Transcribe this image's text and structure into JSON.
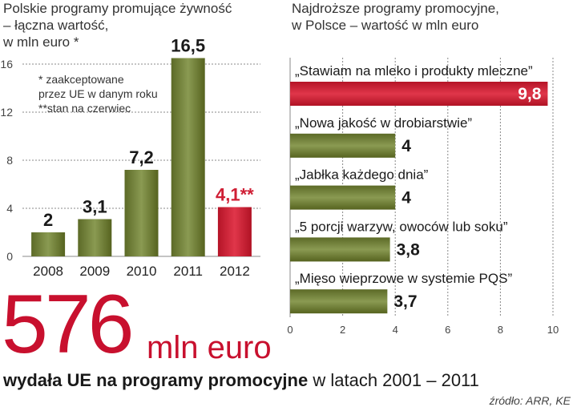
{
  "left_title": [
    "Polskie programy promujące żywność",
    "– łączna wartość,",
    "w mln euro *"
  ],
  "left_note": [
    "* zaakceptowane",
    "przez UE w danym roku",
    "**stan na czerwiec"
  ],
  "right_title": [
    "Najdroższe programy promocyjne,",
    "w Polsce – wartość w mln euro"
  ],
  "colors": {
    "olive": "#6e7a37",
    "red": "#cf1f35",
    "grid": "#888888"
  },
  "chart_data": [
    {
      "type": "bar",
      "categories": [
        "2008",
        "2009",
        "2010",
        "2011",
        "2012"
      ],
      "values": [
        2,
        3.1,
        7.2,
        16.5,
        4.1
      ],
      "value_labels": [
        "2",
        "3,1",
        "7,2",
        "16,5",
        "4,1**"
      ],
      "highlight_index": 4,
      "yticks": [
        "0",
        "4",
        "8",
        "12",
        "16"
      ],
      "ylim": [
        0,
        17
      ],
      "grid": true
    },
    {
      "type": "bar",
      "orientation": "horizontal",
      "categories": [
        "„Stawiam na mleko i produkty mleczne”",
        "„Nowa jakość w drobiarstwie”",
        "„Jabłka każdego dnia”",
        "„5 porcji warzyw, owoców lub soku”",
        "„Mięso wieprzowe w systemie PQS”"
      ],
      "values": [
        9.8,
        4,
        4,
        3.8,
        3.7
      ],
      "value_labels": [
        "9,8",
        "4",
        "4",
        "3,8",
        "3,7"
      ],
      "highlight_index": 0,
      "xticks": [
        "0",
        "2",
        "4",
        "6",
        "8",
        "10"
      ],
      "xlim": [
        0,
        10
      ],
      "grid": true
    }
  ],
  "big_number": "576",
  "big_unit": "mln euro",
  "footer_bold": "wydała UE na programy promocyjne",
  "footer_rest": "w latach 2001 – 2011",
  "source": "źródło: ARR, KE"
}
